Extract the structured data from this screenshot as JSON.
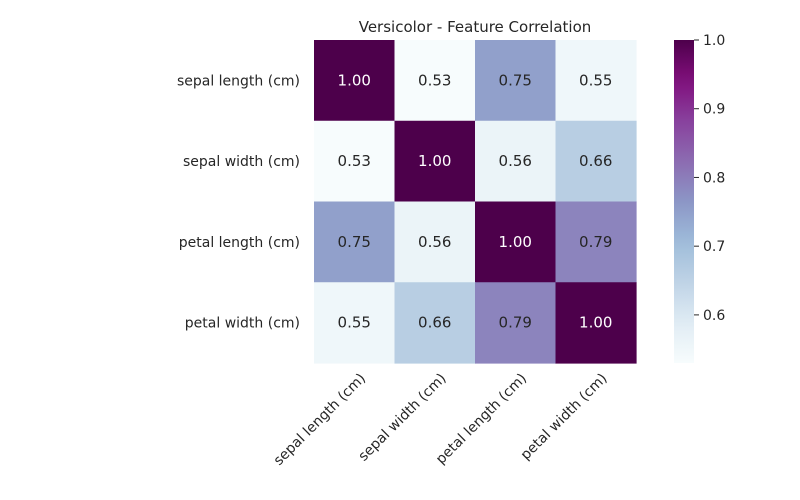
{
  "chart_data": {
    "type": "heatmap",
    "title": "Versicolor - Feature Correlation",
    "xlabel": "",
    "ylabel": "",
    "rows": [
      "sepal length (cm)",
      "sepal width (cm)",
      "petal length (cm)",
      "petal width (cm)"
    ],
    "columns": [
      "sepal length (cm)",
      "sepal width (cm)",
      "petal length (cm)",
      "petal width (cm)"
    ],
    "values": [
      [
        1.0,
        0.53,
        0.75,
        0.55
      ],
      [
        0.53,
        1.0,
        0.56,
        0.66
      ],
      [
        0.75,
        0.56,
        1.0,
        0.79
      ],
      [
        0.55,
        0.66,
        0.79,
        1.0
      ]
    ],
    "cell_labels": [
      [
        "1.00",
        "0.53",
        "0.75",
        "0.55"
      ],
      [
        "0.53",
        "1.00",
        "0.56",
        "0.66"
      ],
      [
        "0.75",
        "0.56",
        "1.00",
        "0.79"
      ],
      [
        "0.55",
        "0.66",
        "0.79",
        "1.00"
      ]
    ],
    "colormap": "BuPu",
    "color_range": [
      0.53,
      1.0
    ],
    "colorbar": {
      "ticks": [
        0.6,
        0.7,
        0.8,
        0.9,
        1.0
      ],
      "tick_labels": [
        "0.6",
        "0.7",
        "0.8",
        "0.9",
        "1.0"
      ]
    },
    "annotated": true,
    "grid": false
  }
}
